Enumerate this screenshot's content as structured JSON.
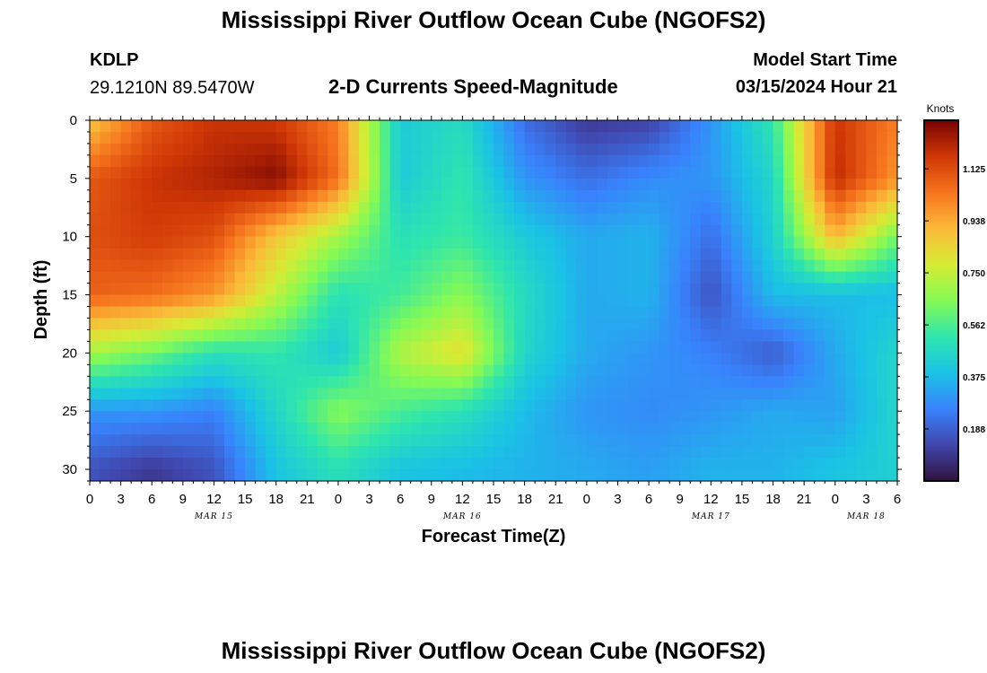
{
  "page": {
    "title_top": "Mississippi River Outflow Ocean Cube (NGOFS2)",
    "title_bottom": "Mississippi River Outflow Ocean Cube (NGOFS2)",
    "station_id": "KDLP",
    "station_coords": "29.1210N  89.5470W",
    "plot_name": "2-D Currents Speed-Magnitude",
    "model_start_label": "Model Start Time",
    "model_start_value": "03/15/2024 Hour 21"
  },
  "chart_data": {
    "type": "heatmap",
    "title": "2-D Currents Speed-Magnitude",
    "xlabel": "Forecast Time(Z)",
    "ylabel": "Depth (ft)",
    "x_tick_labels": [
      "0",
      "3",
      "6",
      "9",
      "12",
      "15",
      "18",
      "21",
      "0",
      "3",
      "6",
      "9",
      "12",
      "15",
      "18",
      "21",
      "0",
      "3",
      "6",
      "9",
      "12",
      "15",
      "18",
      "21",
      "0",
      "3",
      "6"
    ],
    "x_date_labels": [
      {
        "text": "MAR 15",
        "hour": 12
      },
      {
        "text": "MAR 16",
        "hour": 36
      },
      {
        "text": "MAR 17",
        "hour": 60
      },
      {
        "text": "MAR 18",
        "hour": 75
      }
    ],
    "xlim_hours": [
      0,
      78
    ],
    "y_tick_labels": [
      "0",
      "5",
      "10",
      "15",
      "20",
      "25",
      "30"
    ],
    "y_ticks": [
      0,
      5,
      10,
      15,
      20,
      25,
      30
    ],
    "ylim": [
      0,
      31
    ],
    "y_inverted": true,
    "colorbar": {
      "units": "Knots",
      "tick_labels": [
        "0.188",
        "0.375",
        "0.562",
        "0.750",
        "0.938",
        "1.125"
      ],
      "ticks": [
        0.1875,
        0.375,
        0.5625,
        0.75,
        0.9375,
        1.125
      ],
      "range": [
        0,
        1.3
      ]
    },
    "grid": false,
    "colormap": "turbo",
    "values_by_depth": {
      "time_hours": [
        0,
        6,
        12,
        18,
        24,
        30,
        36,
        42,
        48,
        54,
        60,
        66,
        72,
        78
      ],
      "depths_ft": [
        0,
        5,
        10,
        15,
        20,
        25,
        30
      ],
      "rows": [
        [
          0.88,
          1.1,
          1.18,
          1.17,
          1.02,
          0.42,
          0.48,
          0.22,
          0.1,
          0.12,
          0.3,
          0.52,
          1.18,
          1.02
        ],
        [
          1.1,
          1.18,
          1.22,
          1.28,
          1.05,
          0.42,
          0.52,
          0.3,
          0.22,
          0.28,
          0.3,
          0.46,
          1.2,
          0.98
        ],
        [
          1.12,
          1.16,
          1.12,
          0.88,
          0.7,
          0.5,
          0.54,
          0.42,
          0.34,
          0.36,
          0.22,
          0.44,
          0.92,
          0.62
        ],
        [
          1.08,
          1.06,
          0.98,
          0.74,
          0.5,
          0.55,
          0.66,
          0.48,
          0.34,
          0.36,
          0.16,
          0.38,
          0.38,
          0.38
        ],
        [
          0.7,
          0.62,
          0.5,
          0.52,
          0.42,
          0.72,
          0.82,
          0.46,
          0.34,
          0.3,
          0.26,
          0.18,
          0.34,
          0.46
        ],
        [
          0.3,
          0.3,
          0.26,
          0.46,
          0.66,
          0.56,
          0.5,
          0.38,
          0.3,
          0.28,
          0.3,
          0.34,
          0.32,
          0.46
        ],
        [
          0.16,
          0.1,
          0.16,
          0.4,
          0.5,
          0.4,
          0.38,
          0.36,
          0.34,
          0.32,
          0.36,
          0.36,
          0.4,
          0.44
        ]
      ]
    }
  }
}
